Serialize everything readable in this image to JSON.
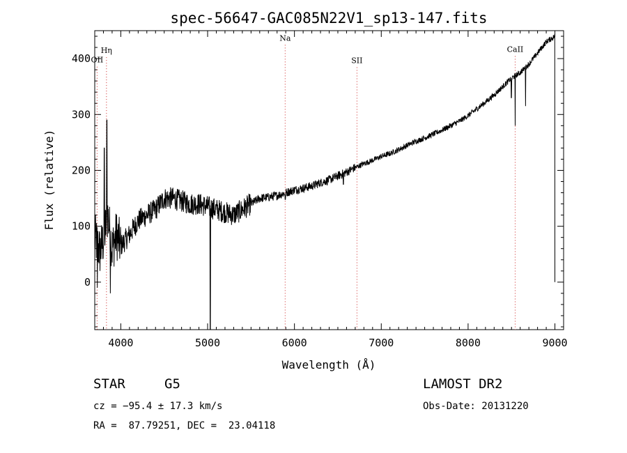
{
  "chart_data": {
    "type": "line",
    "title": "spec-56647-GAC085N22V1_sp13-147.fits",
    "xlabel": "Wavelength (Å)",
    "ylabel": "Flux (relative)",
    "xlim": [
      3700,
      9100
    ],
    "ylim": [
      -85,
      450
    ],
    "xticks": [
      4000,
      5000,
      6000,
      7000,
      8000,
      9000
    ],
    "yticks": [
      0,
      100,
      200,
      300,
      400
    ],
    "grid": false,
    "series": [
      {
        "x": [
          3700,
          3760,
          3800,
          3850,
          3900,
          3950,
          4000,
          4100,
          4200,
          4300,
          4400,
          4500,
          4600,
          4700,
          4800,
          4900,
          5000,
          5100,
          5200,
          5300,
          5400,
          5500,
          5600,
          5700,
          5800,
          5900,
          6000,
          6100,
          6200,
          6300,
          6400,
          6500,
          6600,
          6700,
          6800,
          6900,
          7000,
          7100,
          7200,
          7300,
          7400,
          7500,
          7600,
          7700,
          7800,
          7900,
          8000,
          8100,
          8200,
          8300,
          8400,
          8500,
          8600,
          8700,
          8800,
          8900,
          9000
        ],
        "y": [
          80,
          55,
          75,
          120,
          60,
          85,
          65,
          85,
          110,
          120,
          130,
          150,
          150,
          145,
          140,
          140,
          135,
          130,
          125,
          120,
          130,
          140,
          150,
          152,
          155,
          160,
          165,
          168,
          172,
          178,
          183,
          190,
          197,
          205,
          212,
          218,
          225,
          230,
          237,
          245,
          252,
          258,
          265,
          272,
          280,
          288,
          298,
          310,
          322,
          335,
          350,
          365,
          375,
          390,
          410,
          430,
          440
        ]
      }
    ],
    "features": [
      {
        "x": 5030,
        "y": -85,
        "kind": "absorption"
      },
      {
        "x": 5895,
        "y": 148,
        "kind": "absorption"
      },
      {
        "x": 6563,
        "y": 175,
        "kind": "absorption"
      },
      {
        "x": 8498,
        "y": 330,
        "kind": "absorption"
      },
      {
        "x": 8542,
        "y": 280,
        "kind": "absorption"
      },
      {
        "x": 8662,
        "y": 315,
        "kind": "absorption"
      },
      {
        "x": 3840,
        "y": 290,
        "kind": "spike"
      },
      {
        "x": 3810,
        "y": 240,
        "kind": "spike"
      },
      {
        "x": 3880,
        "y": -20,
        "kind": "spike"
      },
      {
        "x": 3730,
        "y": -10,
        "kind": "spike"
      }
    ],
    "line_markers": [
      {
        "label": "Hη",
        "x": 3835,
        "label_y": 410
      },
      {
        "label": "OII",
        "x": 3727,
        "label_y": 393
      },
      {
        "label": "Na",
        "x": 5893,
        "label_y": 432
      },
      {
        "label": "SII",
        "x": 6720,
        "label_y": 392
      },
      {
        "label": "CaII",
        "x": 8542,
        "label_y": 412
      }
    ]
  },
  "info": {
    "object_type": "STAR",
    "subclass": "G5",
    "cz": "cz = −95.4 ± 17.3 km/s",
    "radec": "RA =  87.79251, DEC =  23.04118",
    "survey": "LAMOST DR2",
    "obs_date": "Obs-Date: 20131220"
  },
  "colors": {
    "line": "#000000",
    "marker": "#cc2222",
    "background": "#ffffff"
  }
}
